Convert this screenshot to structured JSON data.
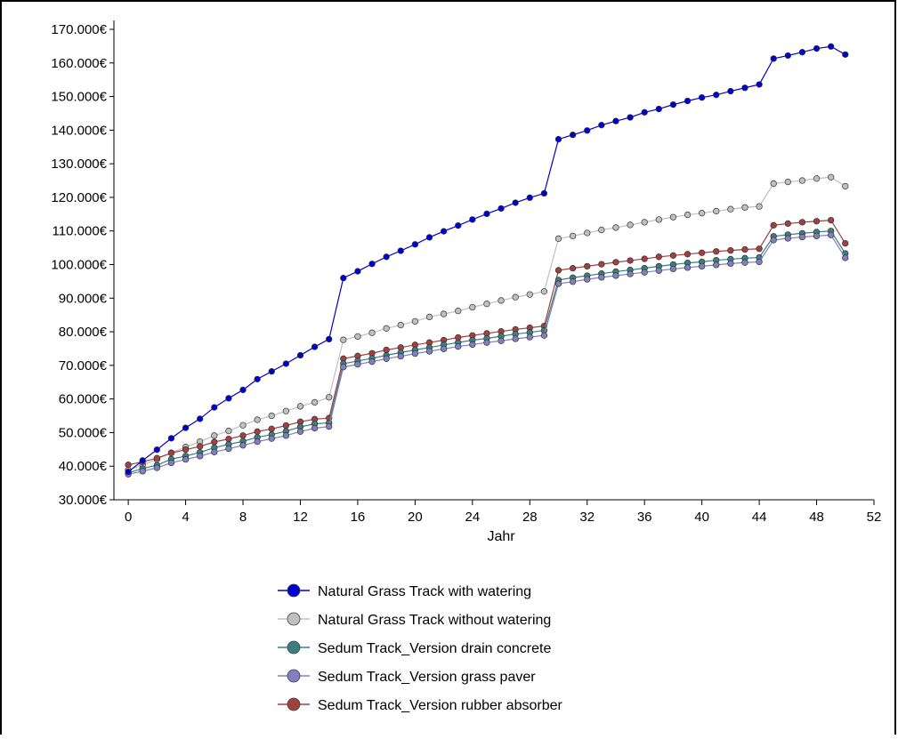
{
  "chart_data": {
    "type": "line",
    "xlabel": "Jahr",
    "ylabel": "",
    "xlim": [
      -1,
      52
    ],
    "ylim": [
      30000,
      170000
    ],
    "xticks": [
      0,
      4,
      8,
      12,
      16,
      20,
      24,
      28,
      32,
      36,
      40,
      44,
      48,
      52
    ],
    "yticks": [
      30000,
      40000,
      50000,
      60000,
      70000,
      80000,
      90000,
      100000,
      110000,
      120000,
      130000,
      140000,
      150000,
      160000,
      170000
    ],
    "ytick_labels": [
      "30.000€",
      "40.000€",
      "50.000€",
      "60.000€",
      "70.000€",
      "80.000€",
      "90.000€",
      "100.000€",
      "110.000€",
      "120.000€",
      "130.000€",
      "140.000€",
      "150.000€",
      "160.000€",
      "170.000€"
    ],
    "grid": false,
    "legend_position": "bottom",
    "x": [
      0,
      1,
      2,
      3,
      4,
      5,
      6,
      7,
      8,
      9,
      10,
      11,
      12,
      13,
      14,
      15,
      16,
      17,
      18,
      19,
      20,
      21,
      22,
      23,
      24,
      25,
      26,
      27,
      28,
      29,
      30,
      31,
      32,
      33,
      34,
      35,
      36,
      37,
      38,
      39,
      40,
      41,
      42,
      43,
      44,
      45,
      46,
      47,
      48,
      49,
      50
    ],
    "series": [
      {
        "name": "Natural Grass Track with watering",
        "color": "#0000cc",
        "values": [
          38300,
          41700,
          44900,
          48300,
          51400,
          54100,
          57500,
          60200,
          62700,
          65900,
          68200,
          70500,
          73000,
          75500,
          77800,
          96000,
          98000,
          100200,
          102300,
          104100,
          106000,
          108100,
          109900,
          111600,
          113400,
          115100,
          116700,
          118400,
          119900,
          121200,
          137300,
          138600,
          139900,
          141500,
          142700,
          143800,
          145300,
          146300,
          147600,
          148700,
          149700,
          150500,
          151600,
          152600,
          153600,
          161300,
          162200,
          163200,
          164300,
          164900,
          162500
        ]
      },
      {
        "name": "Natural Grass Track without watering",
        "color": "#c0c0c0",
        "values": [
          38800,
          40400,
          42000,
          44000,
          45700,
          47300,
          49100,
          50500,
          52200,
          53800,
          55000,
          56400,
          57800,
          59000,
          60500,
          77600,
          78600,
          79700,
          81000,
          82000,
          83100,
          84400,
          85300,
          86200,
          87300,
          88300,
          89300,
          90300,
          91100,
          92000,
          107700,
          108500,
          109400,
          110300,
          111000,
          111800,
          112600,
          113400,
          114100,
          114800,
          115300,
          115900,
          116500,
          117000,
          117300,
          124100,
          124600,
          125000,
          125600,
          126000,
          123300
        ]
      },
      {
        "name": "Sedum Track_Version drain concrete",
        "color": "#3a7f80",
        "values": [
          38000,
          39300,
          40300,
          42100,
          43000,
          44100,
          45500,
          46500,
          47400,
          48600,
          49400,
          50400,
          51700,
          52600,
          52900,
          70500,
          71300,
          72100,
          73000,
          73800,
          74600,
          75300,
          76100,
          76800,
          77500,
          78000,
          78700,
          79300,
          79800,
          80400,
          95400,
          96100,
          96700,
          97300,
          97900,
          98400,
          98900,
          99500,
          100000,
          100500,
          100800,
          101300,
          101600,
          101900,
          102100,
          108400,
          108900,
          109300,
          109700,
          110000,
          103300
        ]
      },
      {
        "name": "Sedum Track_Version grass paver",
        "color": "#8080c0",
        "values": [
          37600,
          38500,
          39500,
          41000,
          42000,
          43000,
          44200,
          45200,
          46200,
          47300,
          48200,
          49100,
          50300,
          51300,
          51800,
          69500,
          70300,
          71100,
          72000,
          72700,
          73500,
          74200,
          74900,
          75600,
          76200,
          76800,
          77300,
          77900,
          78400,
          78900,
          94300,
          94900,
          95600,
          96200,
          96700,
          97200,
          97700,
          98200,
          98700,
          99100,
          99500,
          99900,
          100300,
          100600,
          100800,
          107300,
          107800,
          108200,
          108500,
          108800,
          102000
        ]
      },
      {
        "name": "Sedum Track_Version rubber absorber",
        "color": "#a04040",
        "values": [
          40400,
          41300,
          42400,
          43900,
          44900,
          45900,
          47200,
          48100,
          49100,
          50300,
          51100,
          52100,
          53200,
          54000,
          54300,
          72000,
          72800,
          73600,
          74600,
          75300,
          76100,
          76800,
          77500,
          78300,
          78900,
          79500,
          80100,
          80700,
          81200,
          81700,
          98300,
          98900,
          99500,
          100100,
          100700,
          101200,
          101700,
          102300,
          102700,
          103100,
          103500,
          103900,
          104200,
          104500,
          104700,
          111700,
          112200,
          112600,
          112900,
          113200,
          106300
        ]
      }
    ]
  }
}
